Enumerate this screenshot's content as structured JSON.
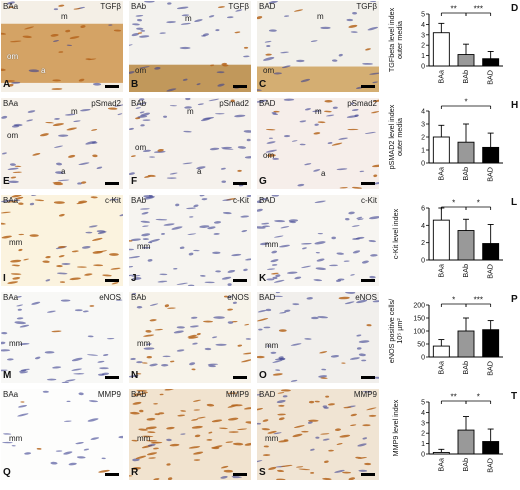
{
  "micrographs": [
    {
      "id": "A",
      "group": "BAa",
      "marker": "TGFβ",
      "labels": {
        "m": "m",
        "om": "om",
        "a": "a"
      }
    },
    {
      "id": "B",
      "group": "BAb",
      "marker": "TGFβ",
      "labels": {
        "m": "m",
        "om": "om"
      }
    },
    {
      "id": "C",
      "group": "BAD",
      "marker": "TGFβ",
      "labels": {
        "m": "m",
        "om": "om"
      }
    },
    {
      "id": "E",
      "group": "BAa",
      "marker": "pSmad2",
      "labels": {
        "m": "m",
        "om": "om",
        "a": "a"
      }
    },
    {
      "id": "F",
      "group": "BAb",
      "marker": "pSmad2",
      "labels": {
        "m": "m",
        "om": "om",
        "a": "a"
      }
    },
    {
      "id": "G",
      "group": "BAD",
      "marker": "pSmad2",
      "labels": {
        "m": "m",
        "om": "om",
        "a": "a"
      }
    },
    {
      "id": "I",
      "group": "BAa",
      "marker": "c-Kit",
      "labels": {
        "mm": "mm"
      }
    },
    {
      "id": "J",
      "group": "BAb",
      "marker": "c-Kit",
      "labels": {
        "mm": "mm"
      }
    },
    {
      "id": "K",
      "group": "BAD",
      "marker": "c-Kit",
      "labels": {
        "mm": "mm"
      }
    },
    {
      "id": "M",
      "group": "BAa",
      "marker": "eNOS",
      "labels": {
        "mm": "mm"
      }
    },
    {
      "id": "N",
      "group": "BAb",
      "marker": "eNOS",
      "labels": {
        "mm": "mm"
      }
    },
    {
      "id": "O",
      "group": "BAD",
      "marker": "eNOS",
      "labels": {
        "mm": "mm"
      }
    },
    {
      "id": "Q",
      "group": "BAa",
      "marker": "MMP9",
      "labels": {
        "mm": "mm"
      }
    },
    {
      "id": "R",
      "group": "BAb",
      "marker": "MMP9",
      "labels": {
        "mm": "mm"
      }
    },
    {
      "id": "S",
      "group": "BAD",
      "marker": "MMP9",
      "labels": {
        "mm": "mm"
      }
    }
  ],
  "colors": {
    "bar_BAa": "#ffffff",
    "bar_BAb": "#999999",
    "bar_BAD": "#000000",
    "stain": "#b5651d",
    "nuclei": "#3b3f8f"
  },
  "chart_data": [
    {
      "id": "D",
      "type": "bar",
      "ylabel": "TGFbeta level index\nouter media",
      "categories": [
        "BAa",
        "BAb",
        "BAD"
      ],
      "values": [
        3.2,
        1.1,
        0.7
      ],
      "errors": [
        0.9,
        1.0,
        0.7
      ],
      "ylim": [
        0,
        5
      ],
      "yticks": [
        0,
        1,
        2,
        3,
        4,
        5
      ],
      "significance": [
        {
          "from": 0,
          "to": 1,
          "label": "**"
        },
        {
          "from": 1,
          "to": 2,
          "label": "***"
        }
      ]
    },
    {
      "id": "H",
      "type": "bar",
      "ylabel": "pSMAD2 level index\nouter media",
      "categories": [
        "BAa",
        "BAb",
        "BAD"
      ],
      "values": [
        2.0,
        1.6,
        1.2
      ],
      "errors": [
        0.9,
        1.4,
        1.1
      ],
      "ylim": [
        0,
        4
      ],
      "yticks": [
        0,
        1,
        2,
        3,
        4
      ],
      "significance": [
        {
          "from": 0,
          "to": 2,
          "label": "*"
        }
      ]
    },
    {
      "id": "L",
      "type": "bar",
      "ylabel": "c-Kit level index",
      "categories": [
        "BAa",
        "BAb",
        "BAD"
      ],
      "values": [
        4.6,
        3.4,
        1.9
      ],
      "errors": [
        1.4,
        1.3,
        2.2
      ],
      "ylim": [
        0,
        6
      ],
      "yticks": [
        0,
        2,
        4,
        6
      ],
      "significance": [
        {
          "from": 0,
          "to": 1,
          "label": "*"
        },
        {
          "from": 1,
          "to": 2,
          "label": "*"
        }
      ]
    },
    {
      "id": "P",
      "type": "bar",
      "ylabel": "eNOS positive cells/\n10⁵ µm²",
      "categories": [
        "BAa",
        "BAb",
        "BAD"
      ],
      "values": [
        42,
        100,
        105
      ],
      "errors": [
        25,
        50,
        35
      ],
      "ylim": [
        0,
        200
      ],
      "yticks": [
        0,
        50,
        100,
        150,
        200
      ],
      "significance": [
        {
          "from": 0,
          "to": 1,
          "label": "*"
        },
        {
          "from": 1,
          "to": 2,
          "label": "***"
        }
      ]
    },
    {
      "id": "T",
      "type": "bar",
      "ylabel": "MMP9 level index",
      "categories": [
        "BAa",
        "BAb",
        "BAD"
      ],
      "values": [
        0.15,
        2.3,
        1.2
      ],
      "errors": [
        0.3,
        1.3,
        1.2
      ],
      "ylim": [
        0,
        5
      ],
      "yticks": [
        0,
        1,
        2,
        3,
        4,
        5
      ],
      "significance": [
        {
          "from": 0,
          "to": 1,
          "label": "**"
        },
        {
          "from": 1,
          "to": 2,
          "label": "*"
        }
      ]
    }
  ]
}
